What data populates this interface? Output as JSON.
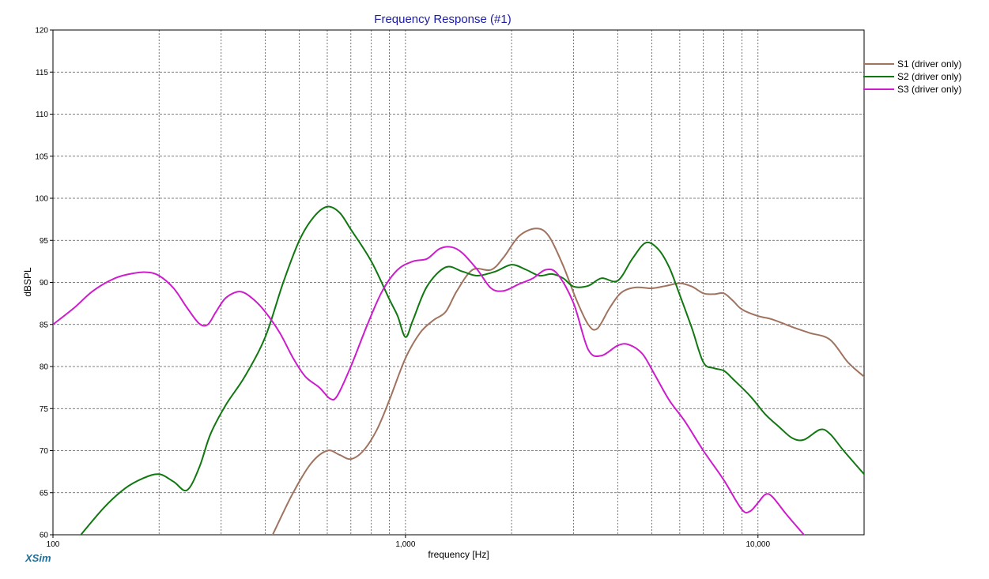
{
  "app": {
    "brand": "XSim"
  },
  "chart_data": {
    "type": "line",
    "title": "Frequency Response (#1)",
    "xlabel": "frequency [Hz]",
    "ylabel": "dBSPL",
    "xscale": "log",
    "xlim": [
      100,
      20000
    ],
    "ylim": [
      60,
      120
    ],
    "yticks": [
      60,
      65,
      70,
      75,
      80,
      85,
      90,
      95,
      100,
      105,
      110,
      115,
      120
    ],
    "xtick_labels": [
      {
        "value": 100,
        "label": "100"
      },
      {
        "value": 1000,
        "label": "1,000"
      },
      {
        "value": 10000,
        "label": "10,000"
      }
    ],
    "x_minor_gridlines": [
      200,
      300,
      400,
      500,
      600,
      700,
      800,
      900,
      2000,
      3000,
      4000,
      5000,
      6000,
      7000,
      8000,
      9000
    ],
    "grid": true,
    "legend_position": "top-right",
    "series": [
      {
        "name": "S1 (driver only)",
        "color": "#a0735f",
        "points": [
          [
            420,
            60
          ],
          [
            480,
            65
          ],
          [
            540,
            68.5
          ],
          [
            600,
            70
          ],
          [
            650,
            69.5
          ],
          [
            700,
            69
          ],
          [
            760,
            70
          ],
          [
            830,
            72.5
          ],
          [
            900,
            76
          ],
          [
            1000,
            81
          ],
          [
            1100,
            84
          ],
          [
            1200,
            85.5
          ],
          [
            1300,
            86.5
          ],
          [
            1400,
            89
          ],
          [
            1550,
            91.5
          ],
          [
            1750,
            91.5
          ],
          [
            1900,
            93
          ],
          [
            2100,
            95.5
          ],
          [
            2350,
            96.4
          ],
          [
            2550,
            95.5
          ],
          [
            2800,
            92
          ],
          [
            3050,
            88
          ],
          [
            3300,
            85
          ],
          [
            3500,
            84.5
          ],
          [
            3800,
            87
          ],
          [
            4100,
            88.8
          ],
          [
            4500,
            89.4
          ],
          [
            5000,
            89.3
          ],
          [
            5500,
            89.6
          ],
          [
            6000,
            89.9
          ],
          [
            6500,
            89.5
          ],
          [
            7000,
            88.7
          ],
          [
            7500,
            88.6
          ],
          [
            8000,
            88.7
          ],
          [
            8500,
            87.8
          ],
          [
            9000,
            86.8
          ],
          [
            10000,
            86
          ],
          [
            11000,
            85.6
          ],
          [
            12500,
            84.7
          ],
          [
            14000,
            84
          ],
          [
            16000,
            83.2
          ],
          [
            18000,
            80.5
          ],
          [
            20000,
            78.8
          ]
        ]
      },
      {
        "name": "S2 (driver only)",
        "color": "#117711",
        "points": [
          [
            120,
            60
          ],
          [
            140,
            63.3
          ],
          [
            160,
            65.5
          ],
          [
            180,
            66.7
          ],
          [
            200,
            67.2
          ],
          [
            220,
            66.3
          ],
          [
            240,
            65.3
          ],
          [
            260,
            68
          ],
          [
            280,
            72
          ],
          [
            310,
            75.5
          ],
          [
            350,
            78.8
          ],
          [
            400,
            83.5
          ],
          [
            450,
            90
          ],
          [
            500,
            95
          ],
          [
            550,
            97.8
          ],
          [
            600,
            99
          ],
          [
            650,
            98.3
          ],
          [
            700,
            96.3
          ],
          [
            800,
            92.5
          ],
          [
            900,
            88
          ],
          [
            950,
            86
          ],
          [
            1000,
            83.5
          ],
          [
            1050,
            85.5
          ],
          [
            1150,
            89.5
          ],
          [
            1300,
            91.8
          ],
          [
            1450,
            91.3
          ],
          [
            1600,
            90.8
          ],
          [
            1800,
            91.3
          ],
          [
            2000,
            92.1
          ],
          [
            2200,
            91.5
          ],
          [
            2400,
            90.8
          ],
          [
            2600,
            91
          ],
          [
            2800,
            90.5
          ],
          [
            3000,
            89.5
          ],
          [
            3300,
            89.6
          ],
          [
            3600,
            90.5
          ],
          [
            4000,
            90.2
          ],
          [
            4400,
            92.8
          ],
          [
            4800,
            94.7
          ],
          [
            5200,
            94
          ],
          [
            5600,
            91.8
          ],
          [
            6000,
            88.5
          ],
          [
            6500,
            84.5
          ],
          [
            7000,
            80.5
          ],
          [
            7500,
            79.8
          ],
          [
            8000,
            79.5
          ],
          [
            8500,
            78.5
          ],
          [
            9500,
            76.5
          ],
          [
            10500,
            74.3
          ],
          [
            11500,
            72.8
          ],
          [
            12500,
            71.5
          ],
          [
            13500,
            71.3
          ],
          [
            15000,
            72.5
          ],
          [
            16000,
            72
          ],
          [
            17500,
            70
          ],
          [
            20000,
            67.2
          ]
        ]
      },
      {
        "name": "S3 (driver only)",
        "color": "#cc1ccc",
        "points": [
          [
            100,
            85
          ],
          [
            115,
            87
          ],
          [
            130,
            89
          ],
          [
            150,
            90.5
          ],
          [
            170,
            91.1
          ],
          [
            185,
            91.2
          ],
          [
            200,
            90.8
          ],
          [
            220,
            89.3
          ],
          [
            240,
            87
          ],
          [
            260,
            85.1
          ],
          [
            275,
            85
          ],
          [
            290,
            86.5
          ],
          [
            310,
            88.2
          ],
          [
            340,
            88.9
          ],
          [
            370,
            88
          ],
          [
            400,
            86.5
          ],
          [
            440,
            84
          ],
          [
            480,
            81
          ],
          [
            520,
            78.8
          ],
          [
            570,
            77.5
          ],
          [
            610,
            76.2
          ],
          [
            640,
            76.5
          ],
          [
            700,
            80
          ],
          [
            780,
            85
          ],
          [
            860,
            89
          ],
          [
            950,
            91.5
          ],
          [
            1050,
            92.5
          ],
          [
            1150,
            92.8
          ],
          [
            1250,
            94
          ],
          [
            1350,
            94.2
          ],
          [
            1450,
            93.5
          ],
          [
            1600,
            91.5
          ],
          [
            1750,
            89.3
          ],
          [
            1900,
            89
          ],
          [
            2100,
            89.8
          ],
          [
            2300,
            90.5
          ],
          [
            2500,
            91.5
          ],
          [
            2700,
            91
          ],
          [
            3000,
            87.5
          ],
          [
            3300,
            82
          ],
          [
            3600,
            81.3
          ],
          [
            4000,
            82.5
          ],
          [
            4300,
            82.6
          ],
          [
            4700,
            81.5
          ],
          [
            5100,
            79
          ],
          [
            5600,
            76
          ],
          [
            6200,
            73.5
          ],
          [
            7000,
            70
          ],
          [
            8000,
            66.5
          ],
          [
            9000,
            63
          ],
          [
            9500,
            62.8
          ],
          [
            10000,
            63.8
          ],
          [
            10500,
            64.8
          ],
          [
            11000,
            64.5
          ],
          [
            12000,
            62.5
          ],
          [
            13500,
            60
          ]
        ]
      }
    ]
  }
}
